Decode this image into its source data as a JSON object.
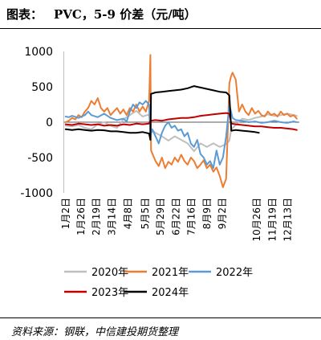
{
  "header": {
    "figure_label": "图表："
  },
  "footer": {
    "source": "资料来源：钢联，中信建投期货整理"
  },
  "chart_data": {
    "type": "line",
    "title": "PVC，5-9 价差（元/吨）",
    "ylim": [
      -1000,
      1000
    ],
    "yticks": [
      1000,
      500,
      0,
      -500,
      -1000
    ],
    "x_ticks": [
      "1月2日",
      "1月26日",
      "2月19日",
      "3月14日",
      "4月8日",
      "5月5日",
      "5月29日",
      "6月22日",
      "7月16日",
      "8月9日",
      "9月2日",
      "10月26日",
      "11月19日",
      "12月13日"
    ],
    "grid": false,
    "legend": "bottom",
    "series": [
      {
        "name": "2020年",
        "color": "#bfbfbf",
        "points": [
          [
            "1月2日",
            -50
          ],
          [
            "1月12日",
            -60
          ],
          [
            "1月22日",
            -40
          ],
          [
            "2月1日",
            -80
          ],
          [
            "2月11日",
            -100
          ],
          [
            "2月21日",
            -30
          ],
          [
            "3月2日",
            0
          ],
          [
            "3月12日",
            -50
          ],
          [
            "3月22日",
            -80
          ],
          [
            "4月1日",
            40
          ],
          [
            "4月11日",
            100
          ],
          [
            "4月21日",
            160
          ],
          [
            "5月1日",
            80
          ],
          [
            "5月11日",
            110
          ],
          [
            "5月13日",
            -100
          ],
          [
            "5月21日",
            -150
          ],
          [
            "5月31日",
            -200
          ],
          [
            "6月10日",
            -260
          ],
          [
            "6月20日",
            -200
          ],
          [
            "6月30日",
            -250
          ],
          [
            "7月10日",
            -300
          ],
          [
            "7月20日",
            -410
          ],
          [
            "7月30日",
            -300
          ],
          [
            "8月9日",
            -350
          ],
          [
            "8月19日",
            -300
          ],
          [
            "8月29日",
            -350
          ],
          [
            "9月8日",
            -310
          ],
          [
            "9月13日",
            -260
          ],
          [
            "9月16日",
            -100
          ],
          [
            "9月23日",
            -40
          ],
          [
            "10月3日",
            50
          ],
          [
            "10月13日",
            30
          ],
          [
            "10月23日",
            60
          ],
          [
            "11月2日",
            80
          ],
          [
            "11月12日",
            110
          ],
          [
            "11月22日",
            90
          ],
          [
            "12月2日",
            100
          ],
          [
            "12月12日",
            120
          ],
          [
            "12月22日",
            100
          ],
          [
            "12月27日",
            90
          ]
        ]
      },
      {
        "name": "2021年",
        "color": "#ed7d31",
        "points": [
          [
            "1月2日",
            0
          ],
          [
            "1月7日",
            20
          ],
          [
            "1月12日",
            60
          ],
          [
            "1月17日",
            40
          ],
          [
            "1月22日",
            100
          ],
          [
            "1月27日",
            70
          ],
          [
            "2月1日",
            150
          ],
          [
            "2月6日",
            200
          ],
          [
            "2月11日",
            300
          ],
          [
            "2月16日",
            250
          ],
          [
            "2月21日",
            340
          ],
          [
            "2月26日",
            200
          ],
          [
            "3月2日",
            150
          ],
          [
            "3月7日",
            200
          ],
          [
            "3月12日",
            100
          ],
          [
            "3月17日",
            150
          ],
          [
            "3月22日",
            200
          ],
          [
            "3月27日",
            120
          ],
          [
            "4月1日",
            180
          ],
          [
            "4月6日",
            100
          ],
          [
            "4月11日",
            200
          ],
          [
            "4月16日",
            150
          ],
          [
            "4月21日",
            250
          ],
          [
            "4月26日",
            150
          ],
          [
            "5月1日",
            220
          ],
          [
            "5月6日",
            150
          ],
          [
            "5月11日",
            300
          ],
          [
            "5月13日",
            950
          ],
          [
            "5月14日",
            -400
          ],
          [
            "5月21日",
            -550
          ],
          [
            "5月26日",
            -620
          ],
          [
            "5月31日",
            -500
          ],
          [
            "6月5日",
            -650
          ],
          [
            "6月10日",
            -560
          ],
          [
            "6月15日",
            -600
          ],
          [
            "6月20日",
            -500
          ],
          [
            "6月25日",
            -560
          ],
          [
            "6月30日",
            -460
          ],
          [
            "7月5日",
            -550
          ],
          [
            "7月10日",
            -600
          ],
          [
            "7月15日",
            -500
          ],
          [
            "7月20日",
            -550
          ],
          [
            "7月25日",
            -650
          ],
          [
            "7月30日",
            -600
          ],
          [
            "8月4日",
            -540
          ],
          [
            "8月9日",
            -650
          ],
          [
            "8月14日",
            -600
          ],
          [
            "8月19日",
            -700
          ],
          [
            "8月24日",
            -640
          ],
          [
            "8月29日",
            -760
          ],
          [
            "9月3日",
            -920
          ],
          [
            "9月8日",
            -800
          ],
          [
            "9月13日",
            550
          ],
          [
            "9月16日",
            660
          ],
          [
            "9月18日",
            700
          ],
          [
            "9月23日",
            600
          ],
          [
            "9月28日",
            150
          ],
          [
            "10月3日",
            250
          ],
          [
            "10月8日",
            150
          ],
          [
            "10月13日",
            100
          ],
          [
            "10月18日",
            200
          ],
          [
            "10月23日",
            120
          ],
          [
            "10月28日",
            160
          ],
          [
            "11月2日",
            100
          ],
          [
            "11月7日",
            80
          ],
          [
            "11月12日",
            150
          ],
          [
            "11月17日",
            100
          ],
          [
            "11月22日",
            120
          ],
          [
            "11月27日",
            80
          ],
          [
            "12月2日",
            150
          ],
          [
            "12月7日",
            100
          ],
          [
            "12月12日",
            120
          ],
          [
            "12月17日",
            80
          ],
          [
            "12月22日",
            100
          ],
          [
            "12月27日",
            50
          ]
        ]
      },
      {
        "name": "2022年",
        "color": "#5b9bd5",
        "points": [
          [
            "1月2日",
            80
          ],
          [
            "1月7日",
            70
          ],
          [
            "1月12日",
            90
          ],
          [
            "1月22日",
            60
          ],
          [
            "2月1日",
            100
          ],
          [
            "2月6日",
            150
          ],
          [
            "2月11日",
            100
          ],
          [
            "2月21日",
            70
          ],
          [
            "3月2日",
            120
          ],
          [
            "3月12日",
            60
          ],
          [
            "3月22日",
            30
          ],
          [
            "4月1日",
            50
          ],
          [
            "4月6日",
            10
          ],
          [
            "4月11日",
            150
          ],
          [
            "4月16日",
            250
          ],
          [
            "4月21日",
            200
          ],
          [
            "4月26日",
            280
          ],
          [
            "5月1日",
            250
          ],
          [
            "5月6日",
            300
          ],
          [
            "5月11日",
            250
          ],
          [
            "5月13日",
            -200
          ],
          [
            "5月16日",
            -100
          ],
          [
            "5月21日",
            -200
          ],
          [
            "5月26日",
            -300
          ],
          [
            "5月31日",
            -150
          ],
          [
            "6月5日",
            -50
          ],
          [
            "6月10日",
            0
          ],
          [
            "6月15日",
            -80
          ],
          [
            "6月20日",
            -50
          ],
          [
            "6月25日",
            -120
          ],
          [
            "6月30日",
            -100
          ],
          [
            "7月5日",
            -200
          ],
          [
            "7月10日",
            -150
          ],
          [
            "7月15日",
            -300
          ],
          [
            "7月20日",
            -350
          ],
          [
            "7月25日",
            -250
          ],
          [
            "7月30日",
            -450
          ],
          [
            "8月4日",
            -500
          ],
          [
            "8月9日",
            -600
          ],
          [
            "8月14日",
            -550
          ],
          [
            "8月19日",
            -650
          ],
          [
            "8月24日",
            -400
          ],
          [
            "8月29日",
            -600
          ],
          [
            "9月3日",
            -500
          ],
          [
            "9月8日",
            -200
          ],
          [
            "9月13日",
            250
          ],
          [
            "9月18日",
            60
          ],
          [
            "9月23日",
            30
          ],
          [
            "10月3日",
            20
          ],
          [
            "10月13日",
            0
          ],
          [
            "10月23日",
            10
          ],
          [
            "11月2日",
            -10
          ],
          [
            "11月12日",
            0
          ],
          [
            "11月22日",
            20
          ],
          [
            "12月2日",
            0
          ],
          [
            "12月12日",
            -10
          ],
          [
            "12月22日",
            10
          ],
          [
            "12月27日",
            0
          ]
        ]
      },
      {
        "name": "2023年",
        "color": "#c00000",
        "points": [
          [
            "1月2日",
            -30
          ],
          [
            "1月12日",
            -40
          ],
          [
            "1月22日",
            -20
          ],
          [
            "2月1日",
            -30
          ],
          [
            "2月11日",
            -40
          ],
          [
            "2月21日",
            -30
          ],
          [
            "3月2日",
            -50
          ],
          [
            "3月12日",
            -40
          ],
          [
            "3月22日",
            -50
          ],
          [
            "4月1日",
            -30
          ],
          [
            "4月11日",
            -40
          ],
          [
            "4月21日",
            -20
          ],
          [
            "5月1日",
            -30
          ],
          [
            "5月11日",
            -20
          ],
          [
            "5月13日",
            20
          ],
          [
            "5月21日",
            30
          ],
          [
            "5月31日",
            20
          ],
          [
            "6月10日",
            40
          ],
          [
            "6月20日",
            50
          ],
          [
            "6月30日",
            60
          ],
          [
            "7月10日",
            60
          ],
          [
            "7月20日",
            70
          ],
          [
            "7月30日",
            90
          ],
          [
            "8月9日",
            100
          ],
          [
            "8月19日",
            110
          ],
          [
            "8月29日",
            120
          ],
          [
            "9月8日",
            130
          ],
          [
            "9月13日",
            120
          ],
          [
            "9月16日",
            -20
          ],
          [
            "9月23日",
            -30
          ],
          [
            "10月3日",
            -40
          ],
          [
            "10月13日",
            -50
          ],
          [
            "10月23日",
            -60
          ],
          [
            "11月2日",
            -60
          ],
          [
            "11月12日",
            -70
          ],
          [
            "11月22日",
            -80
          ],
          [
            "12月2日",
            -80
          ],
          [
            "12月12日",
            -90
          ],
          [
            "12月22日",
            -100
          ],
          [
            "12月27日",
            -110
          ]
        ]
      },
      {
        "name": "2024年",
        "color": "#000000",
        "points": [
          [
            "1月2日",
            -100
          ],
          [
            "1月12日",
            -110
          ],
          [
            "1月22日",
            -100
          ],
          [
            "2月1日",
            -110
          ],
          [
            "2月11日",
            -120
          ],
          [
            "2月21日",
            -110
          ],
          [
            "3月2日",
            -115
          ],
          [
            "3月12日",
            -130
          ],
          [
            "3月22日",
            -130
          ],
          [
            "4月1日",
            -140
          ],
          [
            "4月11日",
            -150
          ],
          [
            "4月21日",
            -150
          ],
          [
            "5月1日",
            -140
          ],
          [
            "5月11日",
            -160
          ],
          [
            "5月13日",
            -250
          ],
          [
            "5月14日",
            400
          ],
          [
            "5月21日",
            420
          ],
          [
            "5月31日",
            430
          ],
          [
            "6月10日",
            440
          ],
          [
            "6月20日",
            450
          ],
          [
            "6月30日",
            460
          ],
          [
            "7月10日",
            480
          ],
          [
            "7月20日",
            510
          ],
          [
            "7月30日",
            490
          ],
          [
            "8月9日",
            470
          ],
          [
            "8月19日",
            450
          ],
          [
            "8月29日",
            430
          ],
          [
            "9月8日",
            420
          ],
          [
            "9月13日",
            380
          ],
          [
            "9月16日",
            -120
          ],
          [
            "9月23日",
            -110
          ],
          [
            "10月3日",
            -120
          ],
          [
            "10月13日",
            -130
          ],
          [
            "10月23日",
            -140
          ],
          [
            "10月29日",
            -150
          ]
        ]
      }
    ]
  }
}
